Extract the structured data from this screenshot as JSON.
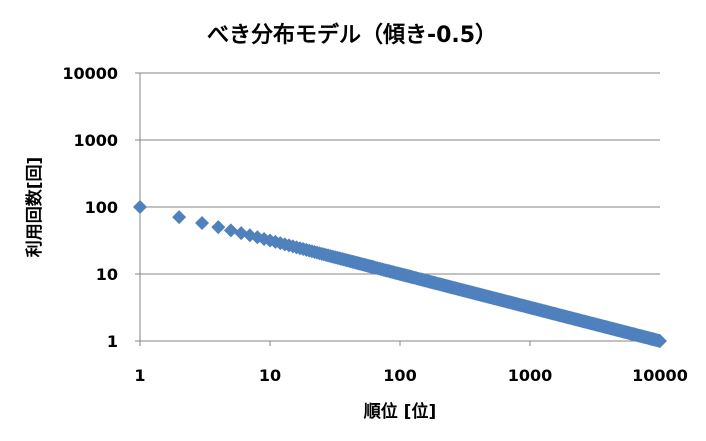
{
  "chart_data": {
    "type": "scatter",
    "title": "べき分布モデル（傾き-0.5）",
    "xlabel": "順位 [位]",
    "ylabel": "利用回数[回]",
    "x_scale": "log",
    "y_scale": "log",
    "xlim": [
      1,
      10000
    ],
    "ylim": [
      1,
      10000
    ],
    "x_ticks": [
      "1",
      "10",
      "100",
      "1000",
      "10000"
    ],
    "y_ticks": [
      "1",
      "10",
      "100",
      "1000",
      "10000"
    ],
    "grid": "horizontal",
    "legend": "none",
    "marker": "diamond",
    "series": [
      {
        "color": "#4f81bd",
        "slope": -0.5,
        "intercept": 100,
        "x_start": 1,
        "x_end": 10000
      }
    ]
  }
}
